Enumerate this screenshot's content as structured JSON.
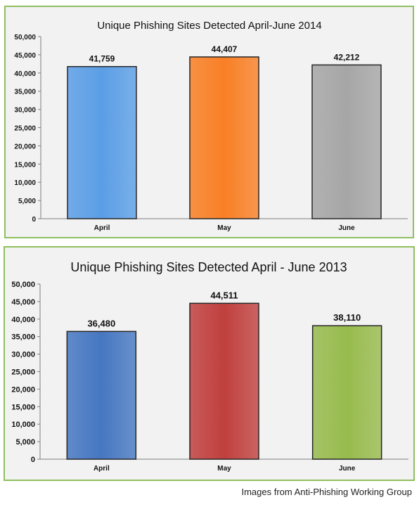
{
  "chart_data": [
    {
      "type": "bar",
      "title": "Unique Phishing Sites Detected April-June 2014",
      "categories": [
        "April",
        "May",
        "June"
      ],
      "values": [
        41759,
        44407,
        42212
      ],
      "value_labels": [
        "41,759",
        "44,407",
        "42,212"
      ],
      "colors": [
        "#5b9ee6",
        "#f97f25",
        "#a6a6a6"
      ],
      "yticks": [
        "0",
        "5,000",
        "10,000",
        "15,000",
        "20,000",
        "25,000",
        "30,000",
        "35,000",
        "40,000",
        "45,000",
        "50,000"
      ],
      "ylim": [
        0,
        50000
      ],
      "grid": false,
      "legend": "none"
    },
    {
      "type": "bar",
      "title": "Unique Phishing Sites Detected April - June 2013",
      "categories": [
        "April",
        "May",
        "June"
      ],
      "values": [
        36480,
        44511,
        38110
      ],
      "value_labels": [
        "36,480",
        "44,511",
        "38,110"
      ],
      "colors": [
        "#4677c2",
        "#c0403e",
        "#97bb4d"
      ],
      "yticks": [
        "0",
        "5,000",
        "10,000",
        "15,000",
        "20,000",
        "25,000",
        "30,000",
        "35,000",
        "40,000",
        "45,000",
        "50,000"
      ],
      "ylim": [
        0,
        50000
      ],
      "grid": false,
      "legend": "none"
    }
  ],
  "credit": "Images from Anti-Phishing Working Group"
}
